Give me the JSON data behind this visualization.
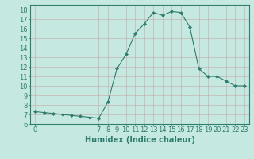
{
  "x": [
    0,
    1,
    2,
    3,
    4,
    5,
    6,
    7,
    8,
    9,
    10,
    11,
    12,
    13,
    14,
    15,
    16,
    17,
    18,
    19,
    20,
    21,
    22,
    23
  ],
  "y": [
    7.3,
    7.2,
    7.1,
    7.0,
    6.9,
    6.8,
    6.7,
    6.6,
    8.3,
    11.8,
    13.3,
    15.5,
    16.5,
    17.7,
    17.4,
    17.8,
    17.7,
    16.2,
    11.8,
    11.0,
    11.0,
    10.5,
    10.0,
    10.0
  ],
  "line_color": "#2e7d6e",
  "marker": "D",
  "marker_size": 2,
  "bg_color": "#c5e8e0",
  "grid_color_h": "#c8a8a8",
  "grid_color_v": "#c8a8a8",
  "xlabel": "Humidex (Indice chaleur)",
  "xlim": [
    -0.5,
    23.5
  ],
  "ylim": [
    6,
    18.5
  ],
  "yticks": [
    6,
    7,
    8,
    9,
    10,
    11,
    12,
    13,
    14,
    15,
    16,
    17,
    18
  ],
  "xticks": [
    0,
    7,
    8,
    9,
    10,
    11,
    12,
    13,
    14,
    15,
    16,
    17,
    18,
    19,
    20,
    21,
    22,
    23
  ],
  "tick_color": "#2e7d6e",
  "label_color": "#2e7d6e",
  "font_size": 6,
  "xlabel_fontsize": 7
}
